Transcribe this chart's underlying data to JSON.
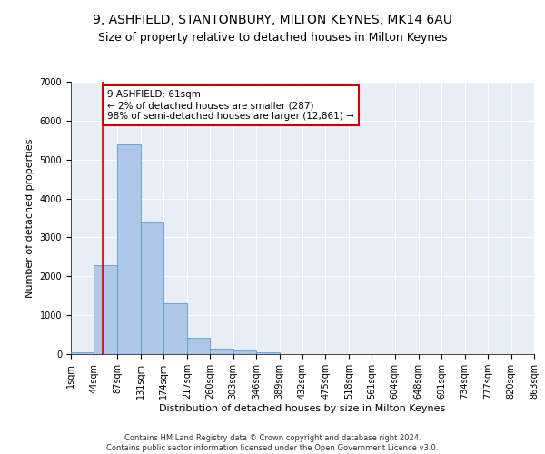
{
  "title_line1": "9, ASHFIELD, STANTONBURY, MILTON KEYNES, MK14 6AU",
  "title_line2": "Size of property relative to detached houses in Milton Keynes",
  "xlabel": "Distribution of detached houses by size in Milton Keynes",
  "ylabel": "Number of detached properties",
  "footnote": "Contains HM Land Registry data © Crown copyright and database right 2024.\nContains public sector information licensed under the Open Government Licence v3.0.",
  "bar_edges": [
    1,
    44,
    87,
    131,
    174,
    217,
    260,
    303,
    346,
    389,
    432,
    475,
    518,
    561,
    604,
    648,
    691,
    734,
    777,
    820,
    863
  ],
  "bar_heights": [
    50,
    2280,
    5390,
    3390,
    1310,
    420,
    140,
    90,
    50,
    0,
    0,
    0,
    0,
    0,
    0,
    0,
    0,
    0,
    0,
    0
  ],
  "bar_color": "#aec6e8",
  "bar_edge_color": "#5a9fd4",
  "property_sqm": 61,
  "annotation_text": "9 ASHFIELD: 61sqm\n← 2% of detached houses are smaller (287)\n98% of semi-detached houses are larger (12,861) →",
  "annotation_box_color": "#ffffff",
  "annotation_box_edge": "#cc0000",
  "vline_color": "#cc0000",
  "ylim": [
    0,
    7000
  ],
  "yticks": [
    0,
    1000,
    2000,
    3000,
    4000,
    5000,
    6000,
    7000
  ],
  "background_color": "#e8eef5",
  "grid_color": "#ffffff",
  "title_fontsize": 10,
  "subtitle_fontsize": 9,
  "tick_fontsize": 7,
  "label_fontsize": 8,
  "footnote_fontsize": 6,
  "annotation_fontsize": 7.5
}
